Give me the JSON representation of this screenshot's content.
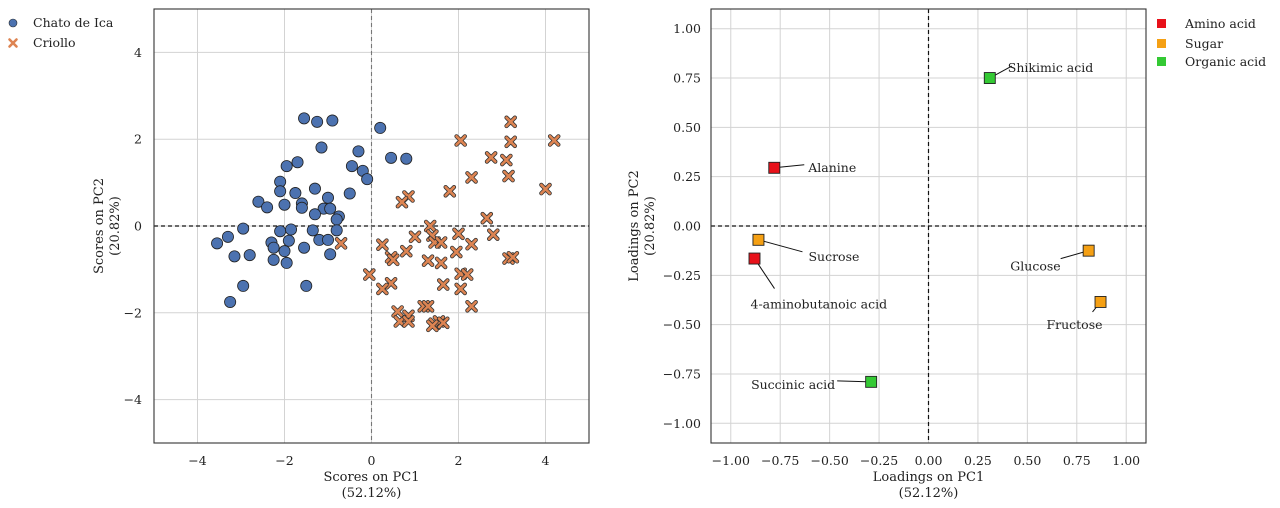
{
  "chart_data": [
    {
      "type": "scatter",
      "name": "scores",
      "xlabel": "Scores on PC1",
      "xlabel_pct": "(52.12%)",
      "ylabel": "Scores on PC2",
      "ylabel_pct": "(20.82%)",
      "xlim": [
        -5,
        5
      ],
      "ylim": [
        -5,
        5
      ],
      "xticks": [
        -4,
        -2,
        0,
        2,
        4
      ],
      "yticks": [
        -4,
        -2,
        0,
        2,
        4
      ],
      "grid": true,
      "legend_position": "outside-top-left",
      "series": [
        {
          "name": "Chato de Ica",
          "marker": "circle",
          "color": "#4c72b0",
          "points": [
            [
              -1.55,
              2.48
            ],
            [
              -1.25,
              2.4
            ],
            [
              -0.9,
              2.43
            ],
            [
              0.2,
              2.26
            ],
            [
              -1.15,
              1.81
            ],
            [
              -0.3,
              1.72
            ],
            [
              0.45,
              1.57
            ],
            [
              0.8,
              1.55
            ],
            [
              -1.95,
              1.38
            ],
            [
              -1.7,
              1.47
            ],
            [
              -0.45,
              1.38
            ],
            [
              -0.2,
              1.27
            ],
            [
              -0.1,
              1.08
            ],
            [
              -2.1,
              1.02
            ],
            [
              -1.3,
              0.86
            ],
            [
              -2.1,
              0.8
            ],
            [
              -1.75,
              0.76
            ],
            [
              -0.5,
              0.75
            ],
            [
              -2.6,
              0.56
            ],
            [
              -2.4,
              0.43
            ],
            [
              -2.0,
              0.49
            ],
            [
              -1.6,
              0.52
            ],
            [
              -1.0,
              0.65
            ],
            [
              -1.6,
              0.42
            ],
            [
              -1.1,
              0.4
            ],
            [
              -0.95,
              0.4
            ],
            [
              -1.3,
              0.27
            ],
            [
              -0.75,
              0.22
            ],
            [
              -0.8,
              0.15
            ],
            [
              -2.3,
              -0.38
            ],
            [
              -2.25,
              -0.5
            ],
            [
              -2.1,
              -0.12
            ],
            [
              -1.85,
              -0.08
            ],
            [
              -1.55,
              -0.5
            ],
            [
              -1.35,
              -0.1
            ],
            [
              -1.2,
              -0.32
            ],
            [
              -1.0,
              -0.32
            ],
            [
              -0.8,
              -0.1
            ],
            [
              -1.9,
              -0.34
            ],
            [
              -3.55,
              -0.4
            ],
            [
              -3.3,
              -0.25
            ],
            [
              -3.15,
              -0.7
            ],
            [
              -2.95,
              -0.06
            ],
            [
              -2.8,
              -0.67
            ],
            [
              -2.25,
              -0.78
            ],
            [
              -2.0,
              -0.58
            ],
            [
              -1.95,
              -0.85
            ],
            [
              -1.5,
              -1.38
            ],
            [
              -0.95,
              -0.65
            ],
            [
              -2.95,
              -1.38
            ],
            [
              -3.25,
              -1.75
            ]
          ]
        },
        {
          "name": "Criollo",
          "marker": "x",
          "color": "#dd8452",
          "points": [
            [
              3.2,
              2.4
            ],
            [
              4.2,
              1.97
            ],
            [
              2.05,
              1.97
            ],
            [
              3.2,
              1.94
            ],
            [
              2.75,
              1.58
            ],
            [
              3.1,
              1.52
            ],
            [
              2.3,
              1.12
            ],
            [
              3.15,
              1.15
            ],
            [
              4.0,
              0.85
            ],
            [
              1.8,
              0.8
            ],
            [
              0.85,
              0.68
            ],
            [
              0.7,
              0.55
            ],
            [
              2.65,
              0.18
            ],
            [
              1.35,
              0.0
            ],
            [
              1.0,
              -0.25
            ],
            [
              1.4,
              -0.22
            ],
            [
              2.0,
              -0.18
            ],
            [
              2.8,
              -0.2
            ],
            [
              -0.7,
              -0.4
            ],
            [
              0.25,
              -0.43
            ],
            [
              0.8,
              -0.58
            ],
            [
              1.45,
              -0.38
            ],
            [
              1.6,
              -0.38
            ],
            [
              2.3,
              -0.42
            ],
            [
              1.95,
              -0.6
            ],
            [
              0.45,
              -0.72
            ],
            [
              0.5,
              -0.78
            ],
            [
              1.3,
              -0.8
            ],
            [
              1.6,
              -0.85
            ],
            [
              3.15,
              -0.75
            ],
            [
              3.25,
              -0.72
            ],
            [
              -0.05,
              -1.12
            ],
            [
              2.05,
              -1.1
            ],
            [
              2.2,
              -1.12
            ],
            [
              0.45,
              -1.32
            ],
            [
              1.65,
              -1.35
            ],
            [
              0.25,
              -1.45
            ],
            [
              2.05,
              -1.45
            ],
            [
              0.6,
              -1.97
            ],
            [
              0.85,
              -2.07
            ],
            [
              1.2,
              -1.85
            ],
            [
              1.3,
              -1.85
            ],
            [
              2.3,
              -1.85
            ],
            [
              0.65,
              -2.2
            ],
            [
              0.85,
              -2.2
            ],
            [
              1.45,
              -2.25
            ],
            [
              1.55,
              -2.2
            ],
            [
              1.65,
              -2.23
            ],
            [
              1.4,
              -2.3
            ]
          ]
        }
      ]
    },
    {
      "type": "scatter",
      "name": "loadings",
      "xlabel": "Loadings on PC1",
      "xlabel_pct": "(52.12%)",
      "ylabel": "Loadings on PC2",
      "ylabel_pct": "(20.82%)",
      "xlim": [
        -1.1,
        1.1
      ],
      "ylim": [
        -1.1,
        1.1
      ],
      "xticks": [
        -1.0,
        -0.75,
        -0.5,
        -0.25,
        0.0,
        0.25,
        0.5,
        0.75,
        1.0
      ],
      "xtick_labels": [
        "−1.00",
        "−0.75",
        "−0.50",
        "−0.25",
        "0.00",
        "0.25",
        "0.50",
        "0.75",
        "1.00"
      ],
      "yticks": [
        1.0,
        0.75,
        0.5,
        0.25,
        0.0,
        -0.25,
        -0.5,
        -0.75,
        -1.0
      ],
      "ytick_labels": [
        "1.00",
        "0.75",
        "0.50",
        "0.25",
        "0.00",
        "−0.25",
        "−0.50",
        "−0.75",
        "−1.00"
      ],
      "grid": true,
      "legend_position": "outside-top-right",
      "categories": [
        {
          "name": "Amino acid",
          "color": "#e8111a"
        },
        {
          "name": "Sugar",
          "color": "#f5a014"
        },
        {
          "name": "Organic acid",
          "color": "#34c934"
        }
      ],
      "points": [
        {
          "label": "Shikimic acid",
          "x": 0.31,
          "y": 0.75,
          "category": "Organic acid"
        },
        {
          "label": "Alanine",
          "x": -0.78,
          "y": 0.295,
          "category": "Amino acid"
        },
        {
          "label": "Sucrose",
          "x": -0.86,
          "y": -0.07,
          "category": "Sugar"
        },
        {
          "label": "4-aminobutanoic acid",
          "x": -0.88,
          "y": -0.165,
          "category": "Amino acid"
        },
        {
          "label": "Glucose",
          "x": 0.81,
          "y": -0.125,
          "category": "Sugar"
        },
        {
          "label": "Fructose",
          "x": 0.87,
          "y": -0.385,
          "category": "Sugar"
        },
        {
          "label": "Succinic acid",
          "x": -0.29,
          "y": -0.79,
          "category": "Organic acid"
        }
      ]
    }
  ]
}
